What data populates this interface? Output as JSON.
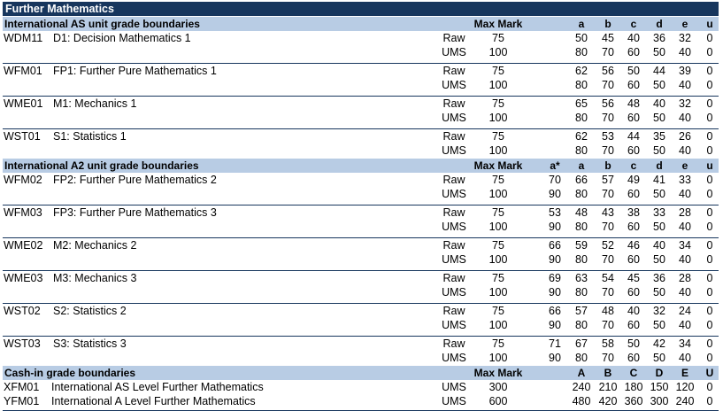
{
  "title": "Further Mathematics",
  "as_section": {
    "title": "International AS unit grade boundaries",
    "max_mark_header": "Max Mark",
    "grade_headers": [
      "a",
      "b",
      "c",
      "d",
      "e",
      "u"
    ],
    "units": [
      {
        "code": "WDM11",
        "name": "D1: Decision Mathematics 1",
        "raw": {
          "label": "Raw",
          "max": "75",
          "grades": [
            "50",
            "45",
            "40",
            "36",
            "32",
            "0"
          ]
        },
        "ums": {
          "label": "UMS",
          "max": "100",
          "grades": [
            "80",
            "70",
            "60",
            "50",
            "40",
            "0"
          ]
        }
      },
      {
        "code": "WFM01",
        "name": "FP1: Further Pure Mathematics 1",
        "raw": {
          "label": "Raw",
          "max": "75",
          "grades": [
            "62",
            "56",
            "50",
            "44",
            "39",
            "0"
          ]
        },
        "ums": {
          "label": "UMS",
          "max": "100",
          "grades": [
            "80",
            "70",
            "60",
            "50",
            "40",
            "0"
          ]
        }
      },
      {
        "code": "WME01",
        "name": "M1: Mechanics 1",
        "raw": {
          "label": "Raw",
          "max": "75",
          "grades": [
            "65",
            "56",
            "48",
            "40",
            "32",
            "0"
          ]
        },
        "ums": {
          "label": "UMS",
          "max": "100",
          "grades": [
            "80",
            "70",
            "60",
            "50",
            "40",
            "0"
          ]
        }
      },
      {
        "code": "WST01",
        "name": "S1: Statistics 1",
        "raw": {
          "label": "Raw",
          "max": "75",
          "grades": [
            "62",
            "53",
            "44",
            "35",
            "26",
            "0"
          ]
        },
        "ums": {
          "label": "UMS",
          "max": "100",
          "grades": [
            "80",
            "70",
            "60",
            "50",
            "40",
            "0"
          ]
        }
      }
    ]
  },
  "a2_section": {
    "title": "International A2 unit grade boundaries",
    "max_mark_header": "Max Mark",
    "grade_headers": [
      "a*",
      "a",
      "b",
      "c",
      "d",
      "e",
      "u"
    ],
    "units": [
      {
        "code": "WFM02",
        "name": "FP2: Further Pure Mathematics 2",
        "raw": {
          "label": "Raw",
          "max": "75",
          "grades": [
            "70",
            "66",
            "57",
            "49",
            "41",
            "33",
            "0"
          ]
        },
        "ums": {
          "label": "UMS",
          "max": "100",
          "grades": [
            "90",
            "80",
            "70",
            "60",
            "50",
            "40",
            "0"
          ]
        }
      },
      {
        "code": "WFM03",
        "name": "FP3: Further Pure Mathematics 3",
        "raw": {
          "label": "Raw",
          "max": "75",
          "grades": [
            "53",
            "48",
            "43",
            "38",
            "33",
            "28",
            "0"
          ]
        },
        "ums": {
          "label": "UMS",
          "max": "100",
          "grades": [
            "90",
            "80",
            "70",
            "60",
            "50",
            "40",
            "0"
          ]
        }
      },
      {
        "code": "WME02",
        "name": "M2: Mechanics 2",
        "raw": {
          "label": "Raw",
          "max": "75",
          "grades": [
            "66",
            "59",
            "52",
            "46",
            "40",
            "34",
            "0"
          ]
        },
        "ums": {
          "label": "UMS",
          "max": "100",
          "grades": [
            "90",
            "80",
            "70",
            "60",
            "50",
            "40",
            "0"
          ]
        }
      },
      {
        "code": "WME03",
        "name": "M3: Mechanics 3",
        "raw": {
          "label": "Raw",
          "max": "75",
          "grades": [
            "69",
            "63",
            "54",
            "45",
            "36",
            "28",
            "0"
          ]
        },
        "ums": {
          "label": "UMS",
          "max": "100",
          "grades": [
            "90",
            "80",
            "70",
            "60",
            "50",
            "40",
            "0"
          ]
        }
      },
      {
        "code": "WST02",
        "name": "S2: Statistics 2",
        "raw": {
          "label": "Raw",
          "max": "75",
          "grades": [
            "66",
            "57",
            "48",
            "40",
            "32",
            "24",
            "0"
          ]
        },
        "ums": {
          "label": "UMS",
          "max": "100",
          "grades": [
            "90",
            "80",
            "70",
            "60",
            "50",
            "40",
            "0"
          ]
        }
      },
      {
        "code": "WST03",
        "name": "S3: Statistics 3",
        "raw": {
          "label": "Raw",
          "max": "75",
          "grades": [
            "71",
            "67",
            "58",
            "50",
            "42",
            "34",
            "0"
          ]
        },
        "ums": {
          "label": "UMS",
          "max": "100",
          "grades": [
            "90",
            "80",
            "70",
            "60",
            "50",
            "40",
            "0"
          ]
        }
      }
    ]
  },
  "cashin_section": {
    "title": "Cash-in grade boundaries",
    "max_mark_header": "Max Mark",
    "grade_headers": [
      "A",
      "B",
      "C",
      "D",
      "E",
      "U"
    ],
    "rows": [
      {
        "code": "XFM01",
        "name": "International AS Level Further Mathematics",
        "type": "UMS",
        "max": "300",
        "grades": [
          "240",
          "210",
          "180",
          "150",
          "120",
          "0"
        ]
      },
      {
        "code": "YFM01",
        "name": "International A Level Further Mathematics",
        "type": "UMS",
        "max": "600",
        "grades": [
          "480",
          "420",
          "360",
          "300",
          "240",
          "0"
        ]
      }
    ]
  }
}
